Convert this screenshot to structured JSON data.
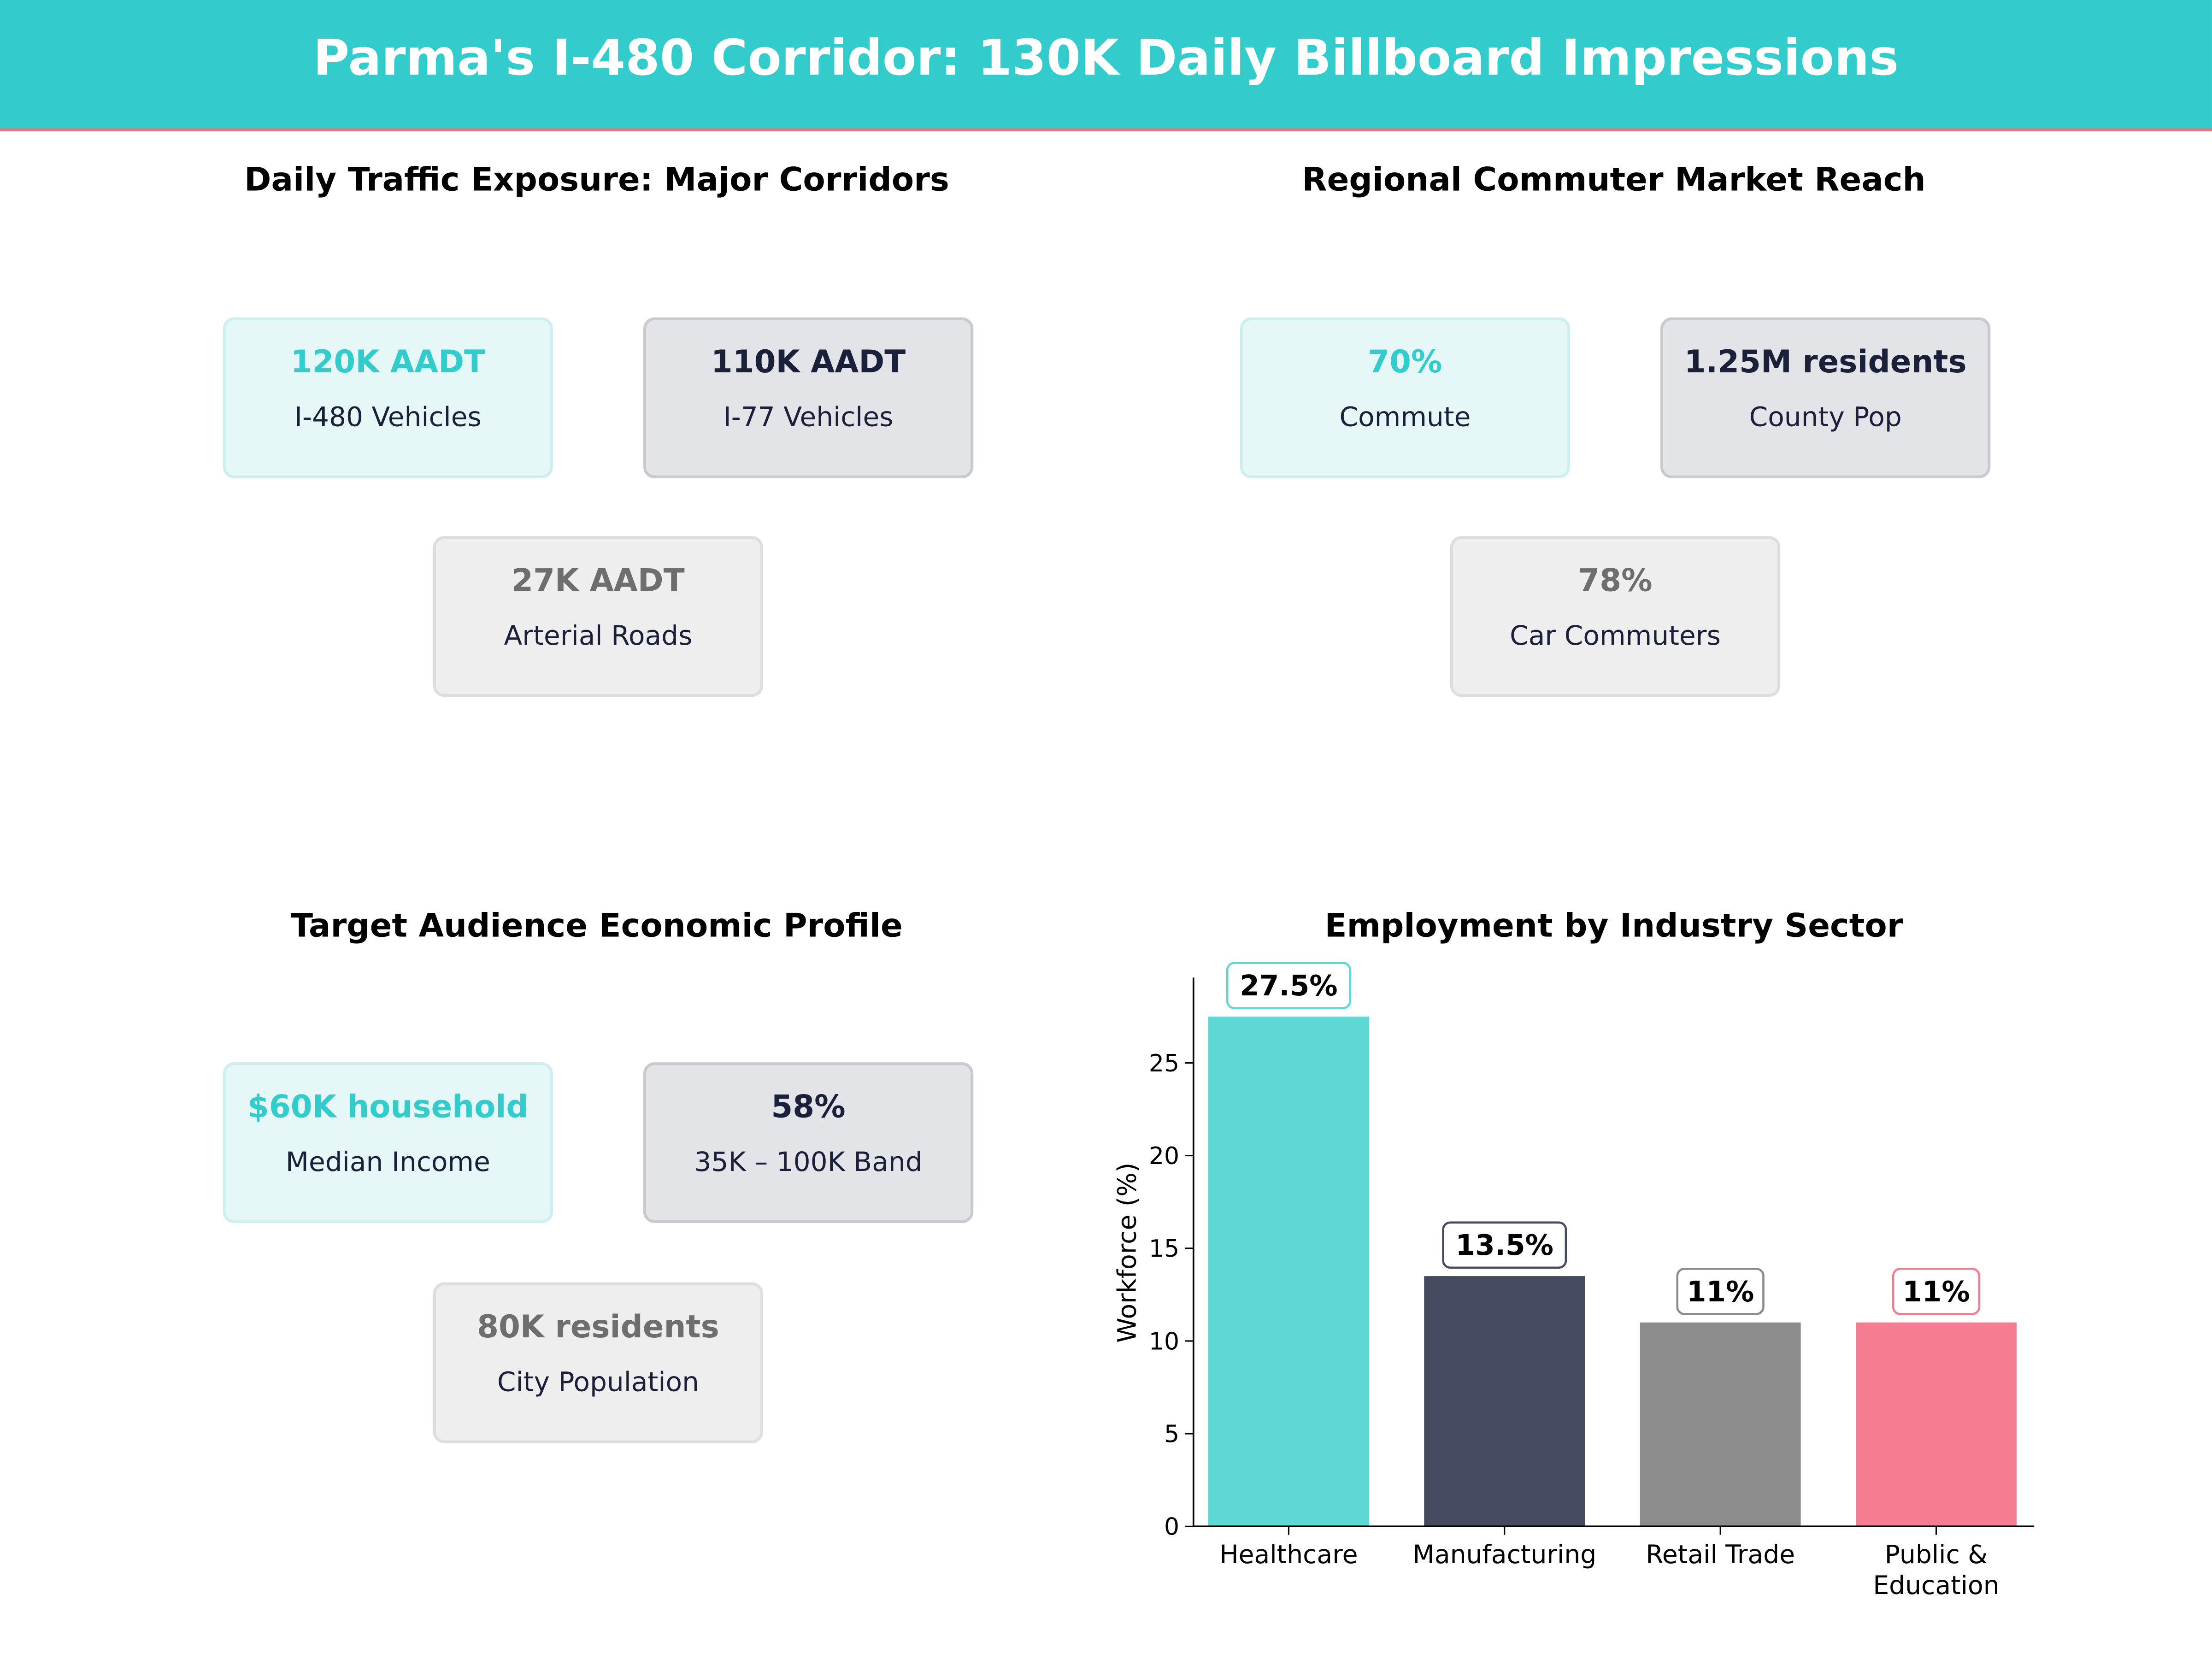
{
  "header": {
    "title": "Parma's I-480 Corridor: 130K Daily Billboard Impressions"
  },
  "colors": {
    "teal": "#33CCCC",
    "navy": "#1A1F3A",
    "gray": "#6E6E6E",
    "pink": "#F0707F"
  },
  "panels": [
    {
      "title": "Daily Traffic Exposure: Major Corridors",
      "cards": [
        {
          "value": "120K AADT",
          "label": "I-480  Vehicles",
          "style": "teal"
        },
        {
          "value": "110K AADT",
          "label": "I-77  Vehicles",
          "style": "dark"
        },
        {
          "value": "27K AADT",
          "label": "Arterial Roads",
          "style": "gray"
        }
      ]
    },
    {
      "title": "Regional Commuter Market Reach",
      "cards": [
        {
          "value": "70%",
          "label": "Commute",
          "style": "teal"
        },
        {
          "value": "1.25M residents",
          "label": "County Pop",
          "style": "dark"
        },
        {
          "value": "78%",
          "label": "Car Commuters",
          "style": "gray"
        }
      ]
    },
    {
      "title": "Target Audience Economic Profile",
      "cards": [
        {
          "value": "$60K household",
          "label": "Median Income",
          "style": "teal"
        },
        {
          "value": "58%",
          "label": "35K – 100K Band",
          "style": "dark"
        },
        {
          "value": "80K residents",
          "label": "City Population",
          "style": "gray"
        }
      ]
    }
  ],
  "chart_data": {
    "type": "bar",
    "title": "Employment by Industry Sector",
    "xlabel": "",
    "ylabel": "Workforce (%)",
    "categories": [
      "Healthcare",
      "Manufacturing",
      "Retail Trade",
      "Public & Education"
    ],
    "category_lines": [
      [
        "Healthcare"
      ],
      [
        "Manufacturing"
      ],
      [
        "Retail Trade"
      ],
      [
        "Public &",
        "Education"
      ]
    ],
    "values": [
      27.5,
      13.5,
      11,
      11
    ],
    "data_labels": [
      "27.5%",
      "13.5%",
      "11%",
      "11%"
    ],
    "bar_colors": [
      "#5DD8D5",
      "#464A60",
      "#8C8C8C",
      "#F67D91"
    ],
    "label_border_colors": [
      "#5DD8D5",
      "#464A60",
      "#8C8C8C",
      "#F67D91"
    ],
    "yticks": [
      0,
      5,
      10,
      15,
      20,
      25
    ],
    "ylim": [
      0,
      29.6
    ],
    "grid": false
  }
}
